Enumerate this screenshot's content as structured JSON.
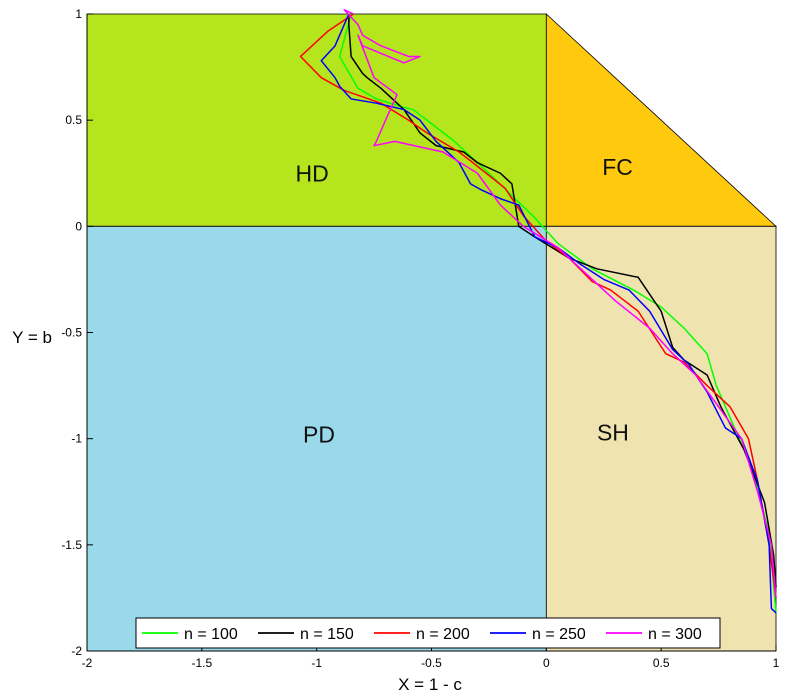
{
  "chart_data": {
    "type": "line",
    "title": "",
    "xlabel": "X = 1 - c",
    "ylabel": "Y = b",
    "xlim": [
      -2,
      1
    ],
    "ylim": [
      -2,
      1
    ],
    "xticks": [
      -2,
      -1.5,
      -1,
      -0.5,
      0,
      0.5,
      1
    ],
    "yticks": [
      -2,
      -1.5,
      -1,
      -0.5,
      0,
      0.5,
      1
    ],
    "xtick_labels": [
      "-2",
      "-1.5",
      "-1",
      "-0.5",
      "0",
      "0.5",
      "1"
    ],
    "ytick_labels": [
      "-2",
      "-1.5",
      "-1",
      "-0.5",
      "0",
      "0.5",
      "1"
    ],
    "legend_position": "bottom",
    "regions": [
      {
        "label": "HD",
        "color": "#b5e61d",
        "polygon": [
          [
            -2,
            0
          ],
          [
            0,
            0
          ],
          [
            0,
            1
          ],
          [
            -2,
            1
          ]
        ],
        "label_at": [
          -1.02,
          0.24
        ]
      },
      {
        "label": "FC",
        "color": "#ffc90e",
        "polygon": [
          [
            0,
            0
          ],
          [
            1,
            0
          ],
          [
            0,
            1
          ]
        ],
        "label_at": [
          0.31,
          0.27
        ]
      },
      {
        "label": "PD",
        "color": "#99d9ea",
        "polygon": [
          [
            -2,
            -2
          ],
          [
            0,
            -2
          ],
          [
            0,
            0
          ],
          [
            -2,
            0
          ]
        ],
        "label_at": [
          -0.99,
          -0.99
        ]
      },
      {
        "label": "SH",
        "color": "#efe4b0",
        "polygon": [
          [
            0,
            -2
          ],
          [
            1,
            -2
          ],
          [
            1,
            0
          ],
          [
            0,
            0
          ]
        ],
        "label_at": [
          0.29,
          -0.98
        ]
      }
    ],
    "series": [
      {
        "name": "n = 100",
        "color": "#00ff00",
        "x": [
          -0.85,
          -0.9,
          -0.82,
          -0.74,
          -0.62,
          -0.58,
          -0.4,
          -0.25,
          -0.05,
          0.05,
          0.2,
          0.38,
          0.5,
          0.6,
          0.7,
          0.74,
          0.82,
          0.9,
          0.97,
          1.0
        ],
        "y": [
          1.0,
          0.8,
          0.65,
          0.6,
          0.56,
          0.55,
          0.4,
          0.25,
          0.04,
          -0.08,
          -0.2,
          -0.3,
          -0.38,
          -0.48,
          -0.6,
          -0.75,
          -0.95,
          -1.15,
          -1.45,
          -1.82
        ]
      },
      {
        "name": "n = 150",
        "color": "#000000",
        "x": [
          -0.86,
          -0.86,
          -0.85,
          -0.8,
          -0.78,
          -0.72,
          -0.62,
          -0.55,
          -0.48,
          -0.36,
          -0.3,
          -0.2,
          -0.15,
          -0.12,
          -0.05,
          0.1,
          0.22,
          0.4,
          0.5,
          0.55,
          0.6,
          0.7,
          0.76,
          0.86,
          0.95,
          0.99,
          1.0
        ],
        "y": [
          1.0,
          0.95,
          0.8,
          0.72,
          0.7,
          0.65,
          0.55,
          0.44,
          0.38,
          0.35,
          0.3,
          0.25,
          0.2,
          0.0,
          -0.05,
          -0.15,
          -0.2,
          -0.24,
          -0.4,
          -0.57,
          -0.63,
          -0.7,
          -0.85,
          -1.05,
          -1.3,
          -1.55,
          -1.7
        ]
      },
      {
        "name": "n = 200",
        "color": "#ff0000",
        "x": [
          -0.84,
          -0.95,
          -1.07,
          -0.98,
          -0.88,
          -0.72,
          -0.6,
          -0.52,
          -0.38,
          -0.32,
          -0.25,
          -0.18,
          -0.1,
          0.0,
          0.1,
          0.2,
          0.28,
          0.4,
          0.52,
          0.6,
          0.7,
          0.8,
          0.88,
          0.92,
          0.97,
          1.0
        ],
        "y": [
          1.0,
          0.92,
          0.8,
          0.7,
          0.64,
          0.58,
          0.5,
          0.44,
          0.35,
          0.3,
          0.24,
          0.18,
          0.05,
          -0.07,
          -0.15,
          -0.26,
          -0.3,
          -0.4,
          -0.6,
          -0.64,
          -0.75,
          -0.85,
          -1.0,
          -1.2,
          -1.5,
          -1.75
        ]
      },
      {
        "name": "n = 250",
        "color": "#0000ff",
        "x": [
          -0.86,
          -0.88,
          -0.92,
          -0.98,
          -0.92,
          -0.9,
          -0.85,
          -0.74,
          -0.62,
          -0.55,
          -0.48,
          -0.38,
          -0.33,
          -0.28,
          -0.2,
          -0.12,
          -0.05,
          0.05,
          0.15,
          0.25,
          0.36,
          0.45,
          0.55,
          0.62,
          0.7,
          0.78,
          0.85,
          0.92,
          0.97,
          0.98,
          1.0
        ],
        "y": [
          1.0,
          0.95,
          0.85,
          0.78,
          0.7,
          0.66,
          0.6,
          0.58,
          0.55,
          0.5,
          0.4,
          0.3,
          0.2,
          0.17,
          0.13,
          0.1,
          -0.05,
          -0.1,
          -0.18,
          -0.25,
          -0.3,
          -0.4,
          -0.58,
          -0.65,
          -0.78,
          -0.95,
          -1.0,
          -1.2,
          -1.5,
          -1.8,
          -1.82
        ]
      },
      {
        "name": "n = 300",
        "color": "#ff00ff",
        "x": [
          -0.84,
          -0.88,
          -0.82,
          -0.8,
          -0.72,
          -0.6,
          -0.55,
          -0.62,
          -0.8,
          -0.82,
          -0.75,
          -0.65,
          -0.7,
          -0.74,
          -0.75,
          -0.66,
          -0.45,
          -0.3,
          -0.2,
          -0.1,
          0.05,
          0.15,
          0.3,
          0.45,
          0.55,
          0.65,
          0.75,
          0.85,
          0.92,
          0.98,
          1.0
        ],
        "y": [
          1.0,
          1.02,
          0.95,
          0.9,
          0.85,
          0.8,
          0.8,
          0.77,
          0.85,
          0.9,
          0.7,
          0.62,
          0.5,
          0.4,
          0.38,
          0.4,
          0.35,
          0.25,
          0.1,
          0.0,
          -0.1,
          -0.2,
          -0.35,
          -0.48,
          -0.6,
          -0.7,
          -0.85,
          -1.0,
          -1.25,
          -1.5,
          -1.75
        ]
      }
    ]
  }
}
